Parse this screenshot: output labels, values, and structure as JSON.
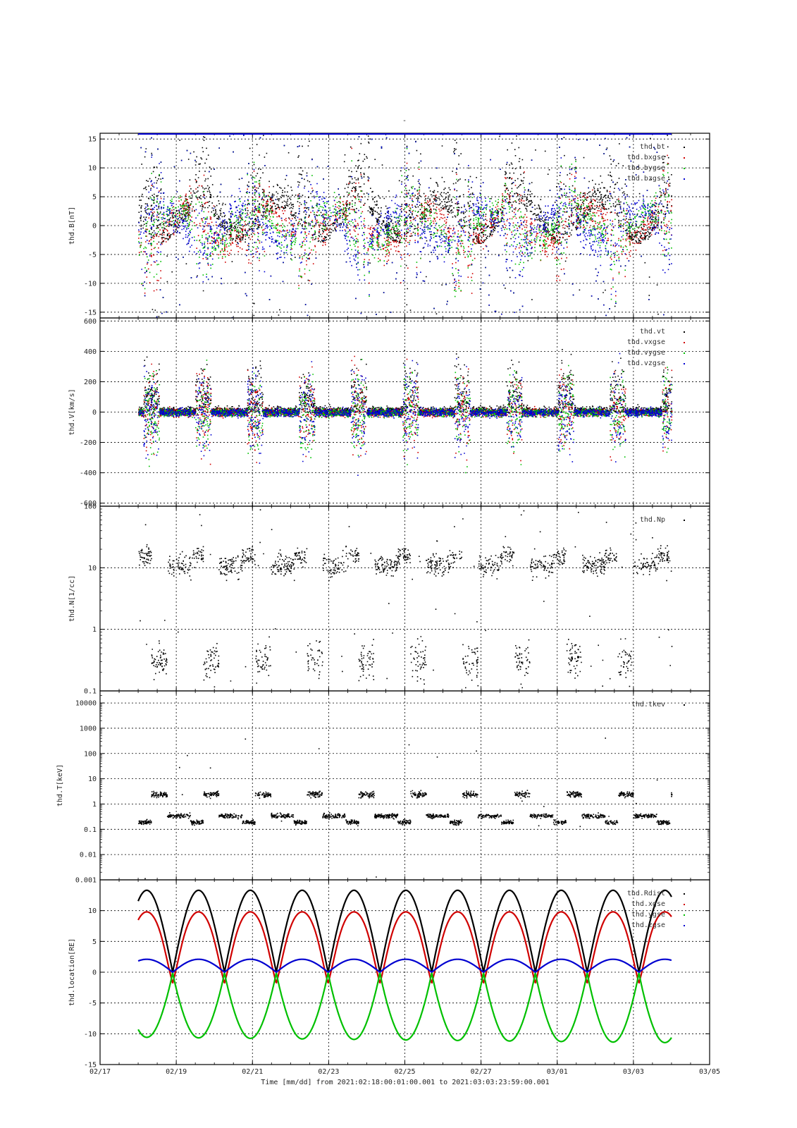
{
  "page": {
    "title": "-"
  },
  "colors": {
    "black": "#000000",
    "red": "#d00000",
    "green": "#00c000",
    "blue": "#0000d0",
    "grid": "#000000"
  },
  "chart_data": [
    {
      "type": "scatter",
      "ylabel": "thd.B[nT]",
      "ylim": [
        -16,
        16
      ],
      "yscale": "linear",
      "yticks": [
        -15,
        -10,
        -5,
        0,
        5,
        10,
        15
      ],
      "ytick_labels": [
        "-15",
        "-10",
        "-5",
        "0",
        "5",
        "10",
        "15"
      ],
      "legend_position": "top-right",
      "series": [
        {
          "name": "thd.bt",
          "color": "#000000"
        },
        {
          "name": "thd.bxgse",
          "color": "#d00000"
        },
        {
          "name": "thd.bygse",
          "color": "#00c000"
        },
        {
          "name": "thd.bzgse",
          "color": "#0000d0"
        }
      ]
    },
    {
      "type": "scatter",
      "ylabel": "thd.V[km/s]",
      "ylim": [
        -620,
        620
      ],
      "yscale": "linear",
      "yticks": [
        -600,
        -400,
        -200,
        0,
        200,
        400,
        600
      ],
      "ytick_labels": [
        "-600",
        "-400",
        "-200",
        "0",
        "200",
        "400",
        "600"
      ],
      "legend_position": "top-right",
      "series": [
        {
          "name": "thd.vt",
          "color": "#000000"
        },
        {
          "name": "thd.vxgse",
          "color": "#d00000"
        },
        {
          "name": "thd.vygse",
          "color": "#00c000"
        },
        {
          "name": "thd.vzgse",
          "color": "#0000d0"
        }
      ]
    },
    {
      "type": "scatter",
      "ylabel": "thd.N[1/cc]",
      "ylim": [
        0.1,
        100
      ],
      "yscale": "log",
      "yticks": [
        0.1,
        1,
        10,
        100
      ],
      "ytick_labels": [
        "0.1",
        "1",
        "10",
        "100"
      ],
      "legend_position": "top-right",
      "series": [
        {
          "name": "thd.Np",
          "color": "#000000"
        }
      ]
    },
    {
      "type": "scatter",
      "ylabel": "thd.T[keV]",
      "ylim": [
        0.001,
        30000
      ],
      "yscale": "log",
      "yticks": [
        0.001,
        0.01,
        0.1,
        1,
        10,
        100,
        1000,
        10000
      ],
      "ytick_labels": [
        "0.001",
        "0.01",
        "0.1",
        "1",
        "10",
        "100",
        "1000",
        "10000"
      ],
      "legend_position": "top-right",
      "series": [
        {
          "name": "thd.tkev",
          "color": "#000000"
        }
      ]
    },
    {
      "type": "line",
      "ylabel": "thd.location[RE]",
      "ylim": [
        -15,
        15
      ],
      "yscale": "linear",
      "yticks": [
        -15,
        -10,
        -5,
        0,
        5,
        10
      ],
      "ytick_labels": [
        "-15",
        "-10",
        "-5",
        "0",
        "5",
        "10"
      ],
      "legend_position": "top-right",
      "orbit_period_days": 1.36,
      "series": [
        {
          "name": "thd.Rdist",
          "color": "#000000",
          "min": 0,
          "max": 13.3
        },
        {
          "name": "thd.xgse",
          "color": "#d00000",
          "min": -1.8,
          "max": 9.8
        },
        {
          "name": "thd.ygse",
          "color": "#00c000",
          "min": -10.5,
          "max": 0
        },
        {
          "name": "thd.zgse",
          "color": "#0000d0",
          "min": 0,
          "max": 2.1
        }
      ]
    }
  ],
  "xaxis": {
    "range_days": [
      0,
      16
    ],
    "data_range_days": [
      1.0,
      15.0
    ],
    "ticks": [
      0,
      2,
      4,
      6,
      8,
      10,
      12,
      14,
      16
    ],
    "tick_labels": [
      "02/17",
      "02/19",
      "02/21",
      "02/23",
      "02/25",
      "02/27",
      "03/01",
      "03/03",
      "03/05"
    ],
    "xlabel": "Time [mm/dd]  from 2021:02:18:00:01:00.001  to  2021:03:03:23:59:00.001"
  }
}
